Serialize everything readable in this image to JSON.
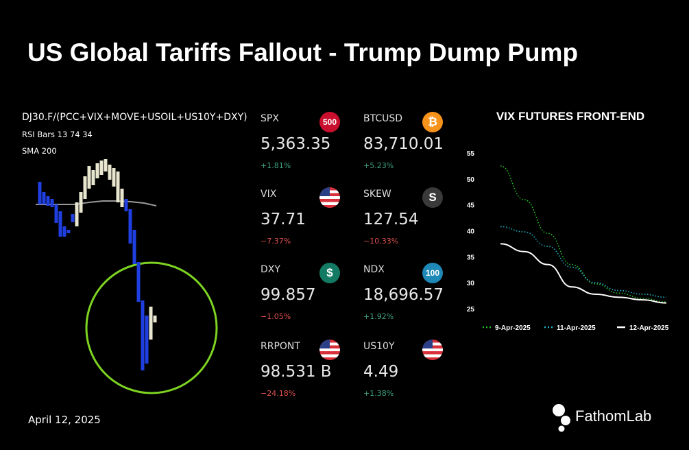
{
  "title": "US Global Tariffs Fallout - Trump Dump Pump",
  "left": {
    "symbol": "DJ30.F/(PCC+VIX+MOVE+USOIL+US10Y+DXY)",
    "indicator1": "RSI Bars 13 74 34",
    "indicator2": "SMA 200",
    "date": "April 12, 2025"
  },
  "tickers": [
    {
      "name": "SPX",
      "value": "5,363.35",
      "change": "+1.81%",
      "dir": "up",
      "icon": "500",
      "icon_name": "sp500-icon",
      "icon_color": "#c8102e"
    },
    {
      "name": "BTCUSD",
      "value": "83,710.01",
      "change": "+5.23%",
      "dir": "up",
      "icon": "₿",
      "icon_name": "bitcoin-icon",
      "icon_color": "#f7931a"
    },
    {
      "name": "VIX",
      "value": "37.71",
      "change": "−7.37%",
      "dir": "down",
      "icon": "",
      "icon_name": "us-flag-icon",
      "icon_color": "flag"
    },
    {
      "name": "SKEW",
      "value": "127.54",
      "change": "−10.33%",
      "dir": "down",
      "icon": "S",
      "icon_name": "skew-s-icon",
      "icon_color": "#3a3a3a"
    },
    {
      "name": "DXY",
      "value": "99.857",
      "change": "−1.05%",
      "dir": "down",
      "icon": "$",
      "icon_name": "dollar-icon",
      "icon_color": "#137a63"
    },
    {
      "name": "NDX",
      "value": "18,696.57",
      "change": "+1.92%",
      "dir": "up",
      "icon": "100",
      "icon_name": "nasdaq100-icon",
      "icon_color": "#1e88b6"
    },
    {
      "name": "RRPONT",
      "value": "98.531 B",
      "change": "−24.18%",
      "dir": "down",
      "icon": "",
      "icon_name": "us-flag-icon",
      "icon_color": "flag"
    },
    {
      "name": "US10Y",
      "value": "4.49",
      "change": "+1.38%",
      "dir": "up",
      "icon": "",
      "icon_name": "us-flag-icon",
      "icon_color": "flag"
    }
  ],
  "brand": "FathomLab",
  "colors": {
    "bull_bar": "#e8e6cf",
    "bear_bar": "#1f3fe0",
    "sma": "#9a9a9a",
    "circle": "#7dd321",
    "up": "#3fa27e",
    "down": "#e0504f"
  },
  "chart_data": {
    "type": "line",
    "title": "VIX FUTURES FRONT-END",
    "ylim": [
      25,
      55
    ],
    "yticks": [
      25,
      30,
      35,
      40,
      45,
      50,
      55
    ],
    "x": [
      1,
      2,
      3,
      4,
      5,
      6,
      7,
      8
    ],
    "series": [
      {
        "name": "9-Apr-2025",
        "style": "dotted",
        "color": "#22c322",
        "values": [
          52.5,
          46,
          39.5,
          33.5,
          29.8,
          28,
          27,
          26.3
        ]
      },
      {
        "name": "11-Apr-2025",
        "style": "dotted",
        "color": "#22b4c8",
        "values": [
          40.8,
          39.8,
          37,
          33,
          30,
          28.5,
          27.8,
          27.2
        ]
      },
      {
        "name": "12-Apr-2025",
        "style": "solid",
        "color": "#ffffff",
        "values": [
          37.5,
          36,
          33.5,
          29.2,
          27.8,
          27.2,
          26.7,
          26.1
        ]
      }
    ],
    "legend_position": "bottom",
    "grid": false
  }
}
